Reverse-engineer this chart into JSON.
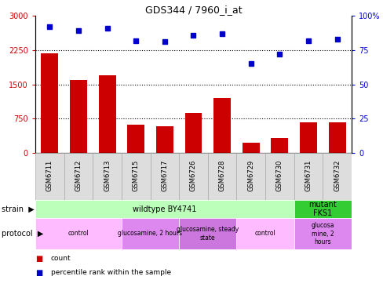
{
  "title": "GDS344 / 7960_i_at",
  "samples": [
    "GSM6711",
    "GSM6712",
    "GSM6713",
    "GSM6715",
    "GSM6717",
    "GSM6726",
    "GSM6728",
    "GSM6729",
    "GSM6730",
    "GSM6731",
    "GSM6732"
  ],
  "counts": [
    2175,
    1600,
    1700,
    620,
    590,
    870,
    1200,
    230,
    320,
    670,
    670
  ],
  "percentiles": [
    92,
    89,
    91,
    82,
    81,
    86,
    87,
    65,
    72,
    82,
    83
  ],
  "ylim_left": [
    0,
    3000
  ],
  "ylim_right": [
    0,
    100
  ],
  "yticks_left": [
    0,
    750,
    1500,
    2250,
    3000
  ],
  "yticks_right": [
    0,
    25,
    50,
    75,
    100
  ],
  "yticklabels_left": [
    "0",
    "750",
    "1500",
    "2250",
    "3000"
  ],
  "yticklabels_right": [
    "0",
    "25",
    "50",
    "75",
    "100%"
  ],
  "bar_color": "#cc0000",
  "dot_color": "#0000cc",
  "strain_row": [
    {
      "label": "wildtype BY4741",
      "start": 0,
      "end": 9,
      "color": "#bbffbb"
    },
    {
      "label": "mutant\nFKS1",
      "start": 9,
      "end": 11,
      "color": "#33cc33"
    }
  ],
  "protocol_row": [
    {
      "label": "control",
      "start": 0,
      "end": 3,
      "color": "#ffbbff"
    },
    {
      "label": "glucosamine, 2 hours",
      "start": 3,
      "end": 5,
      "color": "#dd88ee"
    },
    {
      "label": "glucosamine, steady\nstate",
      "start": 5,
      "end": 7,
      "color": "#cc77dd"
    },
    {
      "label": "control",
      "start": 7,
      "end": 9,
      "color": "#ffbbff"
    },
    {
      "label": "glucosa\nmine, 2\nhours",
      "start": 9,
      "end": 11,
      "color": "#dd88ee"
    }
  ],
  "hlines": [
    750,
    1500,
    2250
  ],
  "tick_color_left": "#cc0000",
  "tick_color_right": "#0000cc",
  "xtick_bg": "#dddddd",
  "xtick_border": "#aaaaaa"
}
